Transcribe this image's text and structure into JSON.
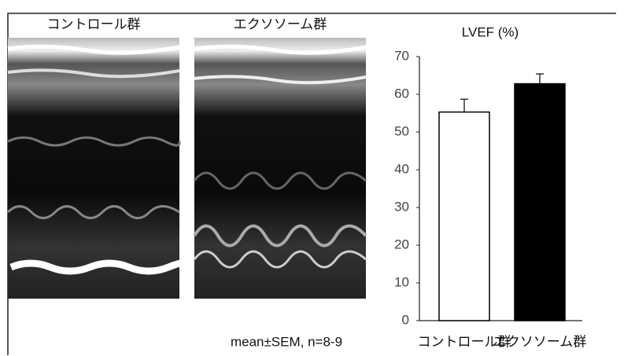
{
  "panels": [
    {
      "label": "コントロール群"
    },
    {
      "label": "エクソソーム群"
    }
  ],
  "note": "mean±SEM, n=8-9",
  "chart_data": {
    "type": "bar",
    "title": "LVEF (%)",
    "categories": [
      "コントロール群",
      "エクソソーム群"
    ],
    "values": [
      55.3,
      62.8
    ],
    "errors": [
      3.4,
      2.6
    ],
    "colors": [
      "#ffffff",
      "#000000"
    ],
    "ylim": [
      0,
      70
    ],
    "yticks": [
      0,
      10,
      20,
      30,
      40,
      50,
      60,
      70
    ],
    "grid": false
  }
}
